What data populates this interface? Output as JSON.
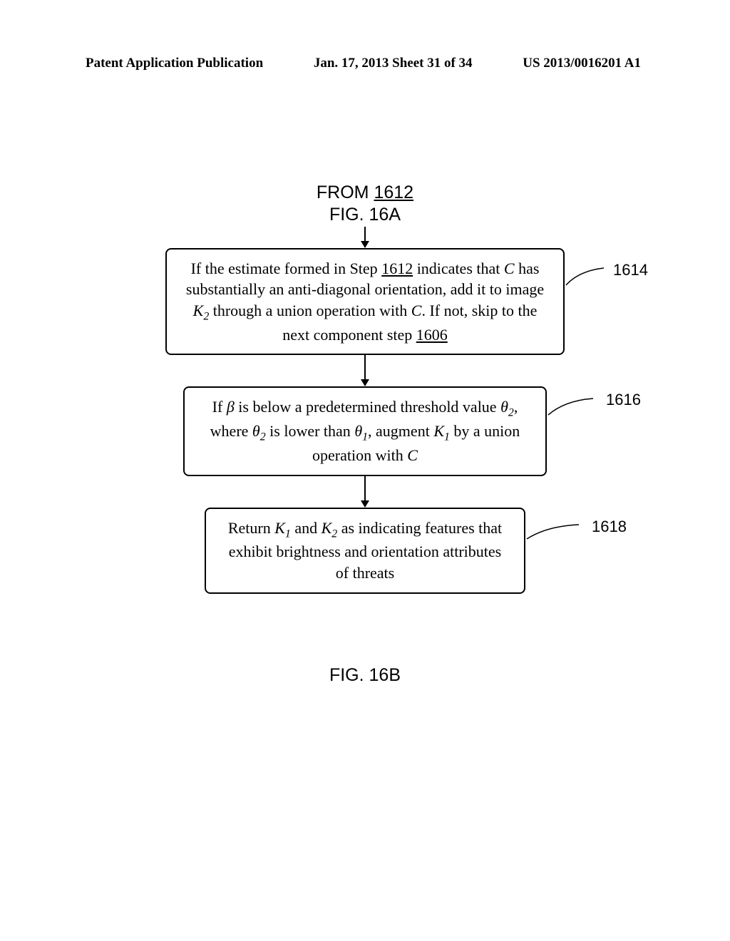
{
  "header": {
    "left": "Patent Application Publication",
    "center": "Jan. 17, 2013  Sheet 31 of 34",
    "right": "US 2013/0016201 A1"
  },
  "from_label": {
    "line1_prefix": "FROM ",
    "line1_ref": "1612",
    "line2": "FIG. 16A"
  },
  "boxes": {
    "b1614": {
      "text_parts": [
        "If the estimate formed in Step ",
        {
          "u": "1612"
        },
        " indicates that ",
        {
          "i": "C"
        },
        " has substantially an anti-diagonal orientation, add it to image ",
        {
          "i": "K"
        },
        {
          "sub": "2"
        },
        " through a union operation with ",
        {
          "i": "C"
        },
        ". If not, skip to the next component step ",
        {
          "u": "1606"
        }
      ],
      "label": "1614"
    },
    "b1616": {
      "text_parts": [
        "If ",
        {
          "i": "β"
        },
        " is below a predetermined threshold value ",
        {
          "i": "θ"
        },
        {
          "sub": "2"
        },
        ", where ",
        {
          "i": "θ"
        },
        {
          "sub": "2"
        },
        " is lower than ",
        {
          "i": "θ"
        },
        {
          "sub": "1"
        },
        ", augment ",
        {
          "i": "K"
        },
        {
          "sub": "1"
        },
        " by a union operation with ",
        {
          "i": "C"
        }
      ],
      "label": "1616"
    },
    "b1618": {
      "text_parts": [
        "Return ",
        {
          "i": "K"
        },
        {
          "sub": "1"
        },
        " and ",
        {
          "i": "K"
        },
        {
          "sub": "2"
        },
        " as indicating features that exhibit brightness and orientation attributes of threats"
      ],
      "label": "1618"
    }
  },
  "figure_caption": "FIG. 16B",
  "layout": {
    "arrow_height_top": 28,
    "arrow_height_between": 42,
    "leader_color": "#000000"
  }
}
